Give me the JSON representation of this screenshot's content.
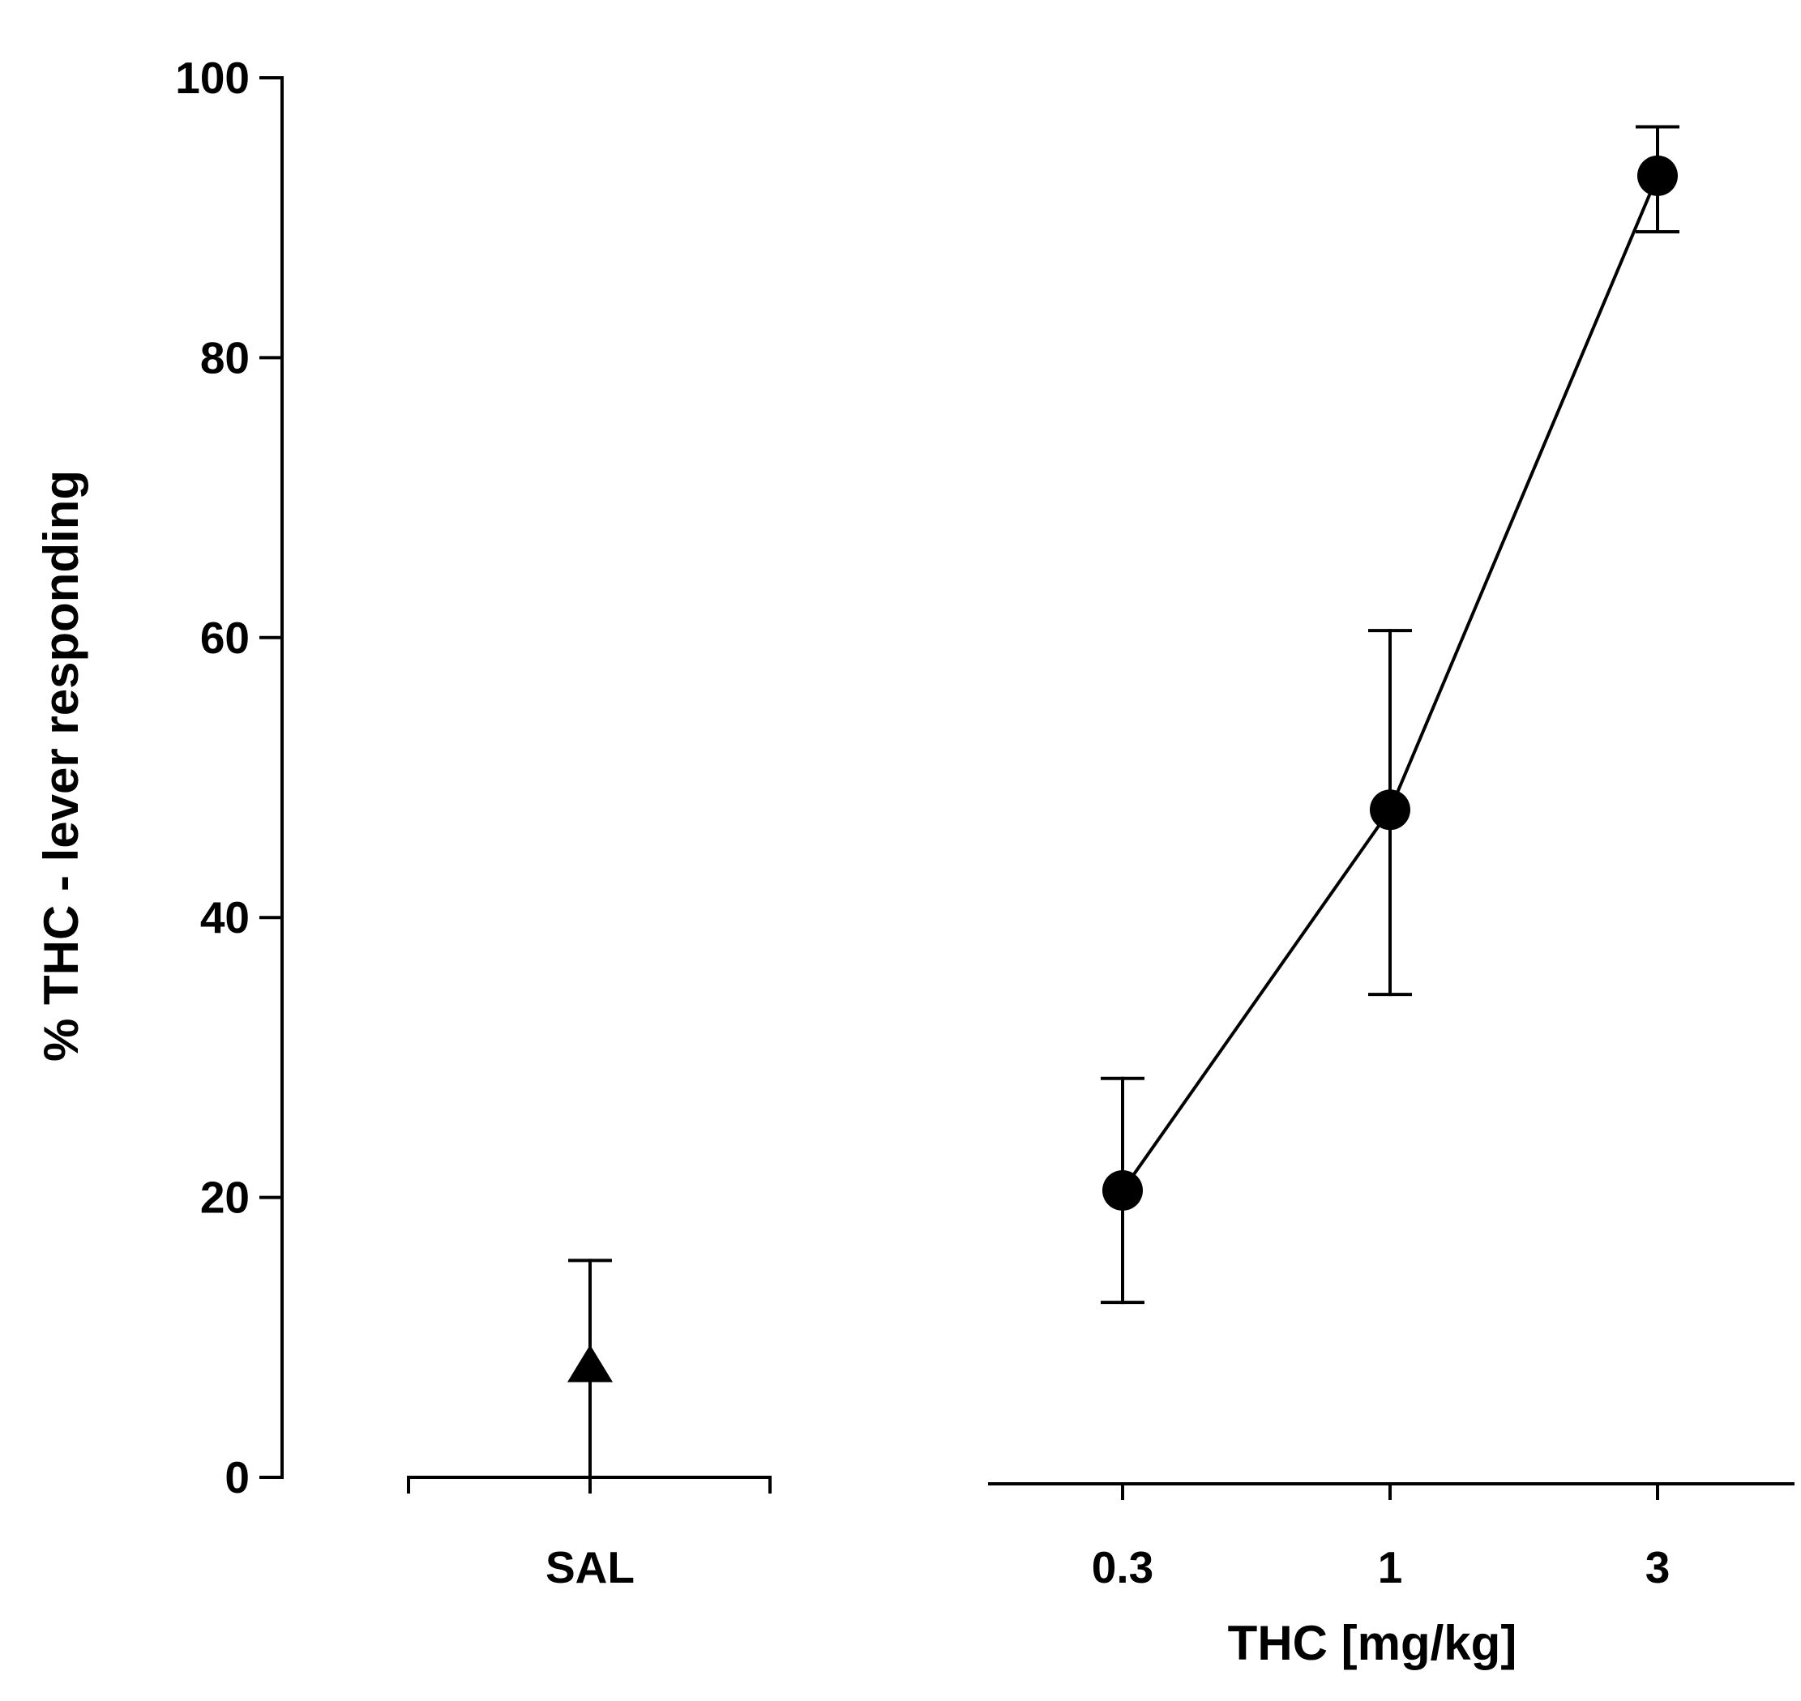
{
  "chart_data": {
    "type": "line",
    "title": "",
    "ylabel": "% THC - lever responding",
    "xlabel": "THC [mg/kg]",
    "ylim": [
      0,
      100
    ],
    "yticks": [
      "0",
      "20",
      "40",
      "60",
      "80",
      "100"
    ],
    "grid": false,
    "colors": {
      "ink": "#000000",
      "background": "#ffffff"
    },
    "control": {
      "name": "SAL",
      "label": "SAL",
      "marker": "triangle-icon",
      "value": 8,
      "error_upper": 15.5,
      "error_lower": 0
    },
    "series": [
      {
        "name": "THC",
        "marker": "circle-icon",
        "categories": [
          "0.3",
          "1",
          "3"
        ],
        "values": [
          20.5,
          47.7,
          93
        ],
        "error_upper": [
          28.5,
          60.5,
          96.5
        ],
        "error_lower": [
          12.5,
          34.5,
          89
        ]
      }
    ]
  }
}
